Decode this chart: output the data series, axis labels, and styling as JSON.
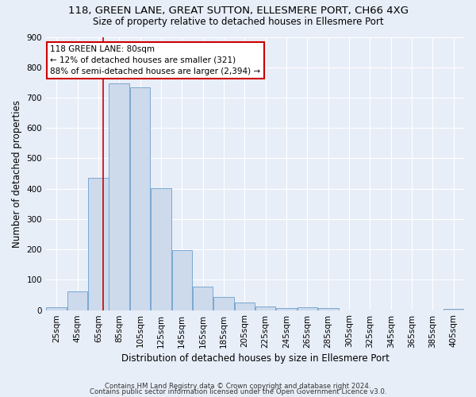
{
  "title1": "118, GREEN LANE, GREAT SUTTON, ELLESMERE PORT, CH66 4XG",
  "title2": "Size of property relative to detached houses in Ellesmere Port",
  "xlabel": "Distribution of detached houses by size in Ellesmere Port",
  "ylabel": "Number of detached properties",
  "footnote1": "Contains HM Land Registry data © Crown copyright and database right 2024.",
  "footnote2": "Contains public sector information licensed under the Open Government Licence v3.0.",
  "bar_color": "#cddaec",
  "bar_edge_color": "#7aa8d0",
  "bin_edges": [
    25,
    45,
    65,
    85,
    105,
    125,
    145,
    165,
    185,
    205,
    225,
    245,
    265,
    285,
    305,
    325,
    345,
    365,
    385,
    405,
    425
  ],
  "bar_heights": [
    10,
    62,
    435,
    748,
    733,
    403,
    198,
    78,
    43,
    25,
    12,
    8,
    10,
    7,
    0,
    0,
    0,
    0,
    0,
    5
  ],
  "subject_size": 80,
  "red_line_color": "#cc0000",
  "annotation_line1": "118 GREEN LANE: 80sqm",
  "annotation_line2": "← 12% of detached houses are smaller (321)",
  "annotation_line3": "88% of semi-detached houses are larger (2,394) →",
  "annotation_box_color": "#ffffff",
  "annotation_box_edge": "#cc0000",
  "ylim": [
    0,
    900
  ],
  "yticks": [
    0,
    100,
    200,
    300,
    400,
    500,
    600,
    700,
    800,
    900
  ],
  "background_color": "#e8eef8",
  "grid_color": "#ffffff",
  "title1_fontsize": 9.5,
  "title2_fontsize": 8.5,
  "axis_label_fontsize": 8.5,
  "tick_fontsize": 7.5,
  "footnote_fontsize": 6.2,
  "annotation_fontsize": 7.5
}
